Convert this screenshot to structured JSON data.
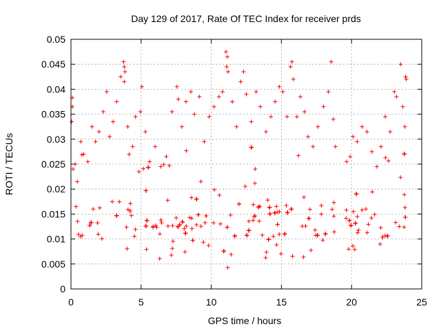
{
  "chart_data": {
    "type": "scatter",
    "title": "Day 129 of 2017, Rate Of TEC Index for receiver prds",
    "xlabel": "GPS time / hours",
    "ylabel": "ROTI / TECUs",
    "xlim": [
      0,
      25
    ],
    "ylim": [
      0,
      0.05
    ],
    "xticks": [
      0,
      5,
      10,
      15,
      20,
      25
    ],
    "yticks": [
      0,
      0.005,
      0.01,
      0.015,
      0.02,
      0.025,
      0.03,
      0.035,
      0.04,
      0.045,
      0.05
    ],
    "xtick_labels": [
      "0",
      "5",
      "10",
      "15",
      "20",
      "25"
    ],
    "ytick_labels": [
      "0",
      "0.005",
      "0.01",
      "0.015",
      "0.02",
      "0.025",
      "0.03",
      "0.035",
      "0.04",
      "0.045",
      "0.05"
    ],
    "grid": true,
    "marker": "plus",
    "color": "#ff0000",
    "series": [
      {
        "points": [
          [
            0.05,
            0.0335
          ],
          [
            0.1,
            0.0383
          ],
          [
            0.1,
            0.0365
          ],
          [
            0.15,
            0.024
          ],
          [
            0.3,
            0.025
          ],
          [
            0.45,
            0.0215
          ],
          [
            0.7,
            0.0295
          ],
          [
            0.9,
            0.027
          ],
          [
            1.2,
            0.0255
          ],
          [
            1.5,
            0.0325
          ],
          [
            1.75,
            0.0295
          ],
          [
            2.0,
            0.0315
          ],
          [
            2.3,
            0.0355
          ],
          [
            2.55,
            0.0395
          ],
          [
            2.75,
            0.0305
          ],
          [
            3.0,
            0.0335
          ],
          [
            3.25,
            0.0375
          ],
          [
            3.55,
            0.0425
          ],
          [
            3.75,
            0.0455
          ],
          [
            3.8,
            0.0445
          ],
          [
            3.85,
            0.0435
          ],
          [
            3.8,
            0.0415
          ],
          [
            4.05,
            0.0325
          ],
          [
            4.4,
            0.0285
          ],
          [
            4.6,
            0.0345
          ],
          [
            4.95,
            0.0355
          ],
          [
            5.05,
            0.0405
          ],
          [
            5.3,
            0.0315
          ],
          [
            5.6,
            0.0255
          ],
          [
            6.0,
            0.0285
          ],
          [
            6.4,
            0.0245
          ],
          [
            6.8,
            0.0265
          ],
          [
            7.2,
            0.0355
          ],
          [
            7.55,
            0.0405
          ],
          [
            7.65,
            0.038
          ],
          [
            7.9,
            0.0325
          ],
          [
            8.2,
            0.0375
          ],
          [
            8.55,
            0.0395
          ],
          [
            8.8,
            0.035
          ],
          [
            9.15,
            0.0385
          ],
          [
            9.5,
            0.0295
          ],
          [
            9.85,
            0.0345
          ],
          [
            10.2,
            0.0365
          ],
          [
            10.55,
            0.0385
          ],
          [
            10.8,
            0.0395
          ],
          [
            11.05,
            0.0475
          ],
          [
            11.15,
            0.0465
          ],
          [
            11.1,
            0.0445
          ],
          [
            11.2,
            0.0435
          ],
          [
            11.5,
            0.0375
          ],
          [
            11.8,
            0.0325
          ],
          [
            12.1,
            0.0415
          ],
          [
            12.3,
            0.0435
          ],
          [
            12.5,
            0.039
          ],
          [
            12.85,
            0.0335
          ],
          [
            13.2,
            0.0395
          ],
          [
            13.5,
            0.0365
          ],
          [
            13.9,
            0.0315
          ],
          [
            14.25,
            0.0345
          ],
          [
            14.55,
            0.0375
          ],
          [
            14.85,
            0.0405
          ],
          [
            15.1,
            0.0395
          ],
          [
            15.4,
            0.0345
          ],
          [
            15.65,
            0.0445
          ],
          [
            15.75,
            0.0455
          ],
          [
            15.85,
            0.042
          ],
          [
            16.1,
            0.0345
          ],
          [
            16.35,
            0.0385
          ],
          [
            16.65,
            0.0355
          ],
          [
            16.9,
            0.0305
          ],
          [
            17.25,
            0.0285
          ],
          [
            17.6,
            0.0325
          ],
          [
            18.0,
            0.0365
          ],
          [
            18.35,
            0.0395
          ],
          [
            18.55,
            0.0455
          ],
          [
            18.7,
            0.034
          ],
          [
            18.85,
            0.0285
          ],
          [
            19.65,
            0.0255
          ],
          [
            19.9,
            0.0265
          ],
          [
            20.1,
            0.0305
          ],
          [
            20.4,
            0.0295
          ],
          [
            20.75,
            0.0325
          ],
          [
            21.1,
            0.0315
          ],
          [
            21.45,
            0.0275
          ],
          [
            21.8,
            0.0245
          ],
          [
            22.1,
            0.0285
          ],
          [
            22.4,
            0.0345
          ],
          [
            22.75,
            0.0315
          ],
          [
            23.05,
            0.0395
          ],
          [
            23.2,
            0.0385
          ],
          [
            23.5,
            0.045
          ],
          [
            23.65,
            0.0365
          ],
          [
            23.8,
            0.0325
          ],
          [
            23.85,
            0.0425
          ],
          [
            23.9,
            0.042
          ]
        ],
        "dense_band": {
          "x_range": [
            0.0,
            23.9
          ],
          "gap": [
            18.95,
            19.6
          ],
          "y_range": [
            0.003,
            0.022
          ],
          "y_center": 0.011
        }
      }
    ]
  }
}
